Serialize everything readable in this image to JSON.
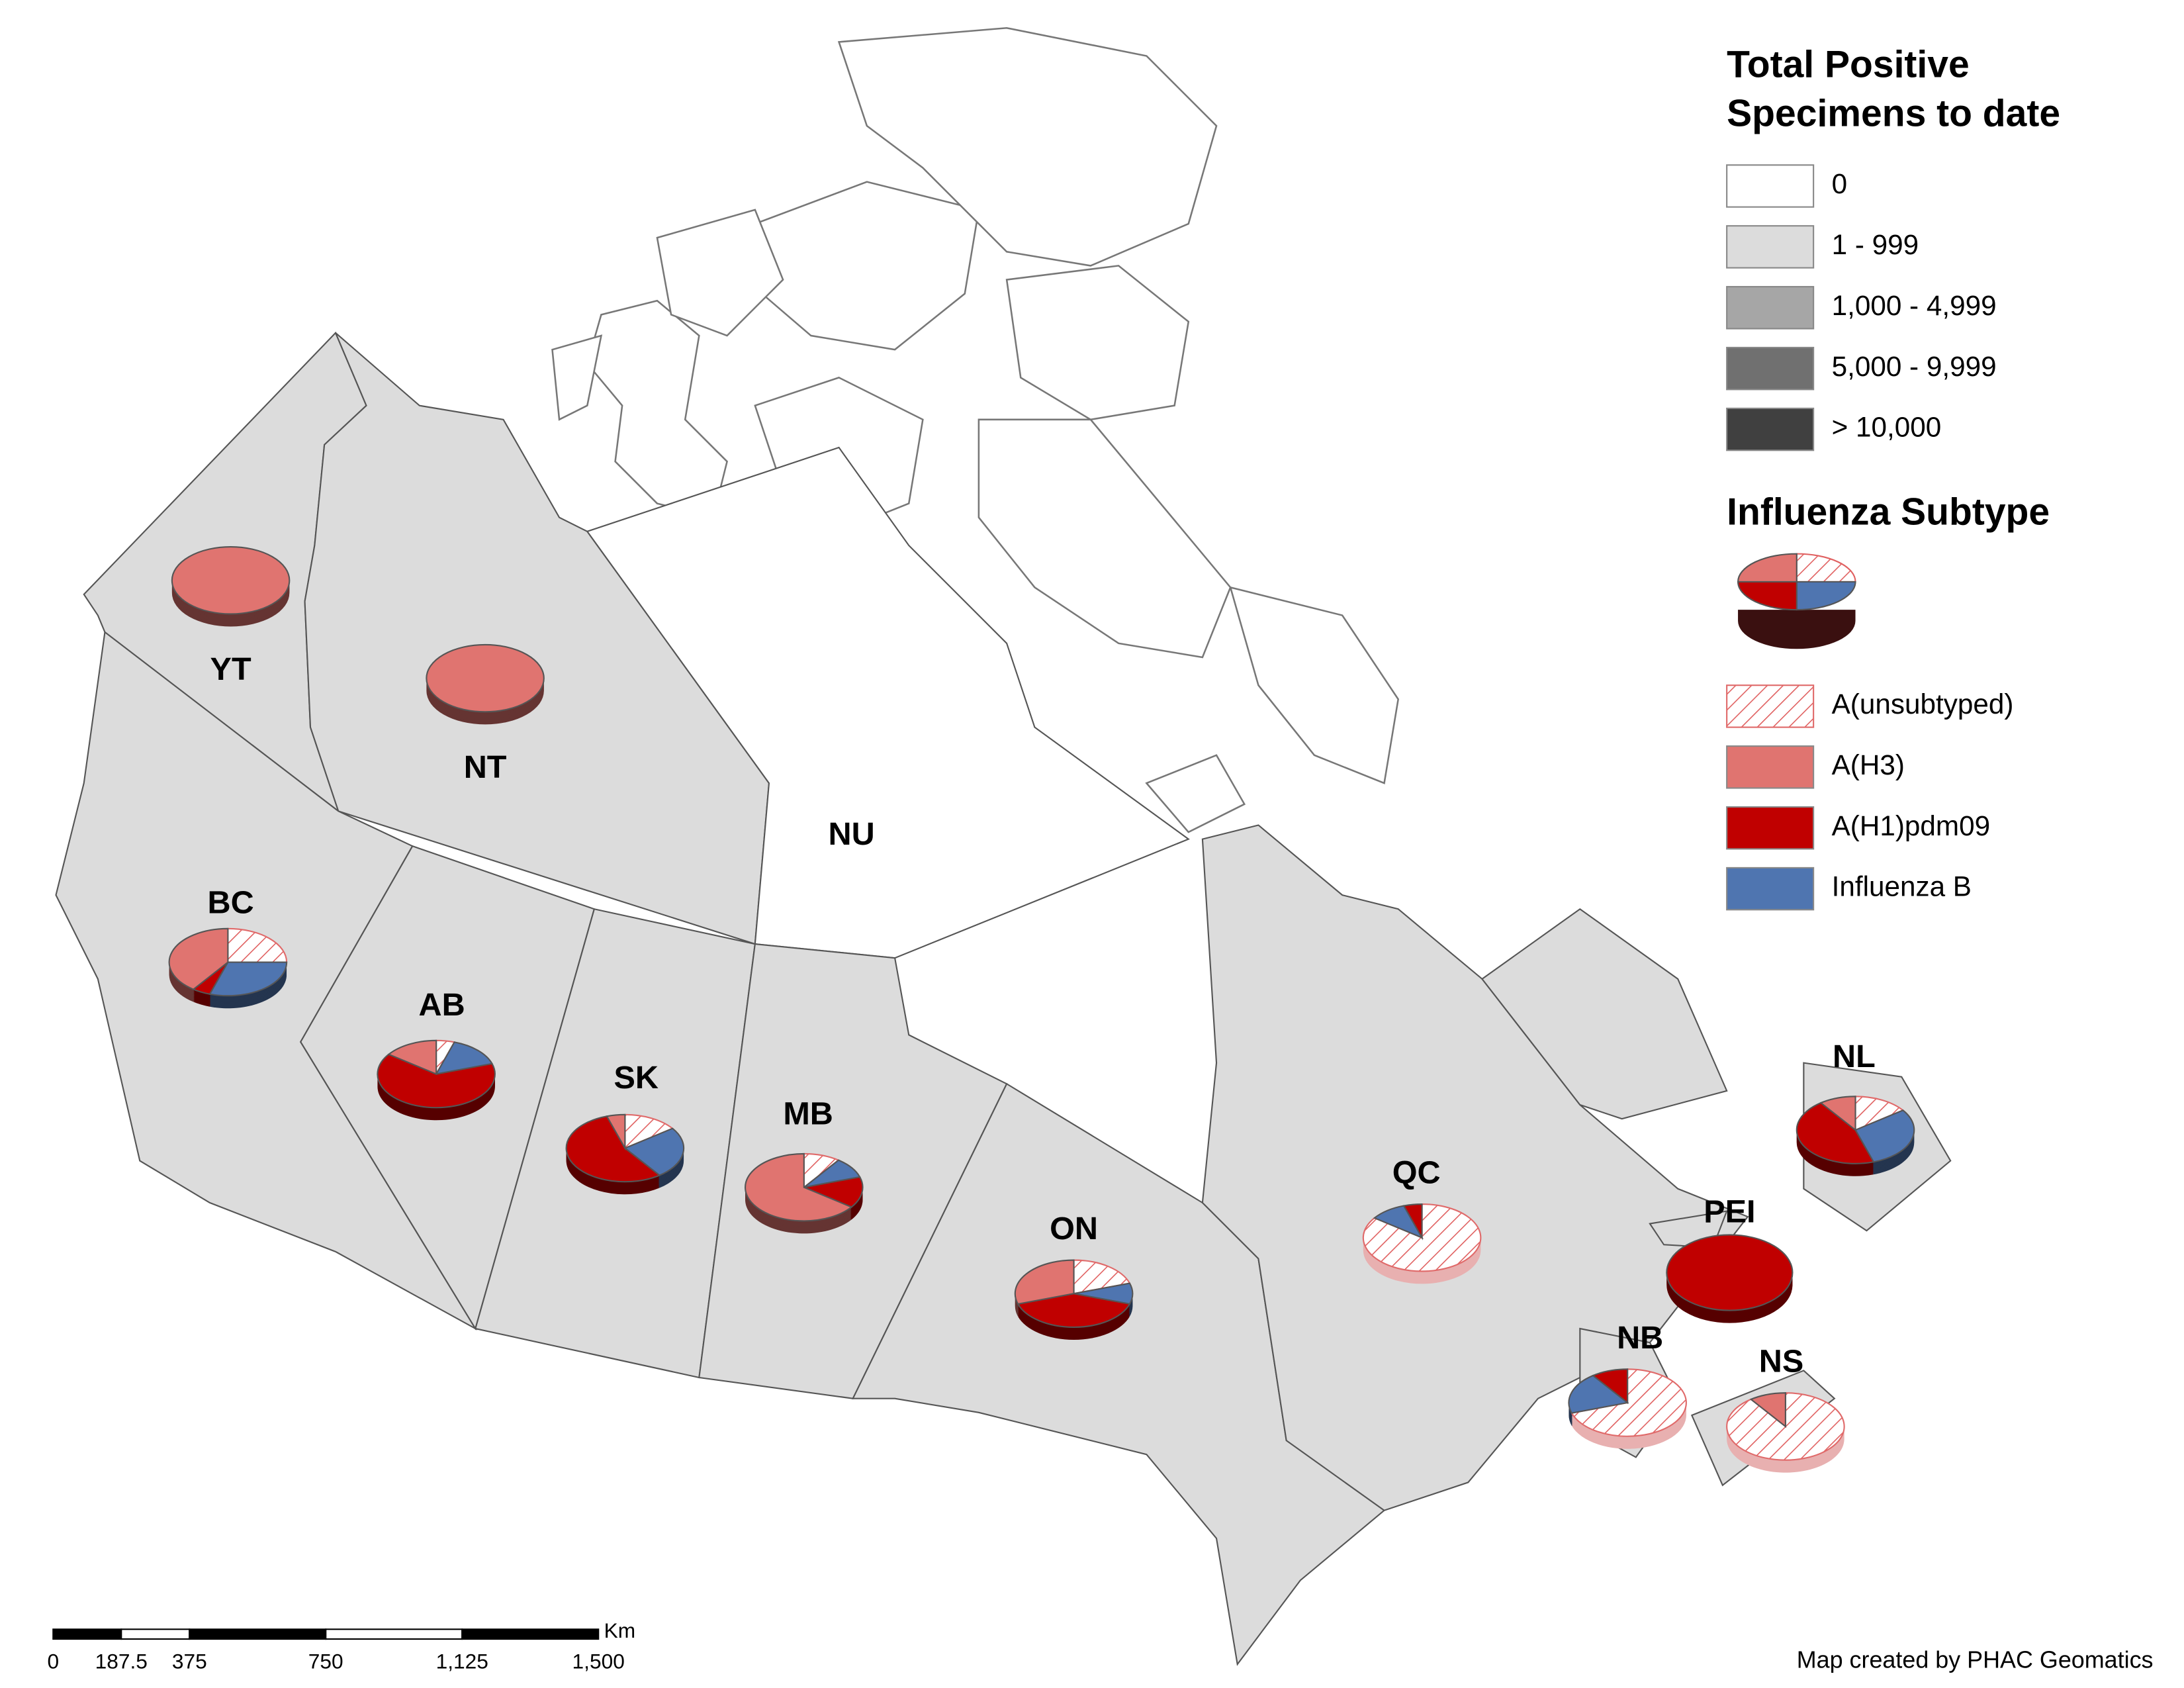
{
  "legend": {
    "title": [
      "Total Positive",
      "Specimens to date"
    ],
    "classes": [
      {
        "label": "0",
        "color": "#ffffff"
      },
      {
        "label": "1 - 999",
        "color": "#dcdcdc"
      },
      {
        "label": "1,000 - 4,999",
        "color": "#a6a6a6"
      },
      {
        "label": "5,000 - 9,999",
        "color": "#707070"
      },
      {
        "label": "> 10,000",
        "color": "#404040"
      }
    ],
    "subtype_title": "Influenza Subtype",
    "subtypes": [
      {
        "name": "A(unsubtyped)",
        "color": "#e06a6a",
        "hatched": true
      },
      {
        "name": "A(H3)",
        "color": "#e07470",
        "hatched": false
      },
      {
        "name": "A(H1)pdm09",
        "color": "#c00000",
        "hatched": false
      },
      {
        "name": "Influenza B",
        "color": "#4f75b0",
        "hatched": false
      }
    ]
  },
  "provinces": [
    {
      "label": "YT",
      "class": 1,
      "pie": [
        0,
        100,
        0,
        0
      ]
    },
    {
      "label": "NT",
      "class": 1,
      "pie": [
        0,
        100,
        0,
        0
      ]
    },
    {
      "label": "NU",
      "class": 0,
      "pie": null
    },
    {
      "label": "BC",
      "class": 1,
      "pie": [
        25,
        40,
        5,
        30
      ]
    },
    {
      "label": "AB",
      "class": 1,
      "pie": [
        5,
        15,
        65,
        15
      ]
    },
    {
      "label": "SK",
      "class": 1,
      "pie": [
        15,
        5,
        55,
        25
      ]
    },
    {
      "label": "MB",
      "class": 1,
      "pie": [
        10,
        65,
        15,
        10
      ]
    },
    {
      "label": "ON",
      "class": 1,
      "pie": [
        20,
        30,
        40,
        10
      ]
    },
    {
      "label": "QC",
      "class": 1,
      "pie": [
        85,
        0,
        5,
        10
      ]
    },
    {
      "label": "NL",
      "class": 1,
      "pie": [
        15,
        10,
        45,
        30
      ]
    },
    {
      "label": "PEI",
      "class": 1,
      "pie": [
        0,
        0,
        100,
        0
      ]
    },
    {
      "label": "NB",
      "class": 1,
      "pie": [
        70,
        0,
        10,
        20
      ]
    },
    {
      "label": "NS",
      "class": 1,
      "pie": [
        90,
        10,
        0,
        0
      ]
    }
  ],
  "scale_bar": {
    "unit": "Km",
    "ticks": [
      0,
      187.5,
      375,
      750,
      {
        "value": 1125,
        "label": "1,125"
      },
      {
        "value": 1500,
        "label": "1,500"
      }
    ]
  },
  "credit": "Map created by PHAC Geomatics"
}
